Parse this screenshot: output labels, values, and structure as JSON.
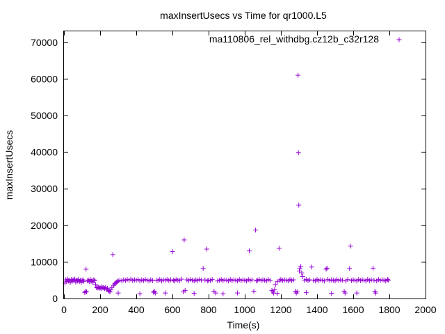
{
  "chart_data": {
    "type": "scatter",
    "title": "maxInsertUsecs vs Time for qr1000.L5",
    "xlabel": "Time(s)",
    "ylabel": "maxInsertUsecs",
    "xlim": [
      0,
      2000
    ],
    "ylim": [
      0,
      73000
    ],
    "x_ticks": [
      0,
      200,
      400,
      600,
      800,
      1000,
      1200,
      1400,
      1600,
      1800,
      2000
    ],
    "y_ticks": [
      0,
      10000,
      20000,
      30000,
      40000,
      50000,
      60000,
      70000
    ],
    "grid": false,
    "legend_position": "top-right",
    "marker": "+",
    "series": [
      {
        "name": "ma110806_rel_withdbg.cz12b_c32r128",
        "color": "#9400d3",
        "points": [
          [
            5,
            4200
          ],
          [
            10,
            5100
          ],
          [
            15,
            4600
          ],
          [
            20,
            5300
          ],
          [
            25,
            4800
          ],
          [
            30,
            5000
          ],
          [
            35,
            4400
          ],
          [
            40,
            5200
          ],
          [
            45,
            4700
          ],
          [
            50,
            5100
          ],
          [
            55,
            4900
          ],
          [
            60,
            5300
          ],
          [
            65,
            4500
          ],
          [
            70,
            5000
          ],
          [
            75,
            4800
          ],
          [
            80,
            5200
          ],
          [
            85,
            4600
          ],
          [
            90,
            5000
          ],
          [
            95,
            4400
          ],
          [
            100,
            4900
          ],
          [
            105,
            5100
          ],
          [
            110,
            4700
          ],
          [
            115,
            1600
          ],
          [
            118,
            2000
          ],
          [
            122,
            8000
          ],
          [
            125,
            1800
          ],
          [
            130,
            4800
          ],
          [
            135,
            5000
          ],
          [
            140,
            4600
          ],
          [
            145,
            5200
          ],
          [
            150,
            4700
          ],
          [
            155,
            5000
          ],
          [
            160,
            4400
          ],
          [
            165,
            5100
          ],
          [
            170,
            4900
          ],
          [
            175,
            3800
          ],
          [
            180,
            3000
          ],
          [
            185,
            2900
          ],
          [
            190,
            3100
          ],
          [
            195,
            2800
          ],
          [
            200,
            3000
          ],
          [
            205,
            2700
          ],
          [
            210,
            3200
          ],
          [
            215,
            2900
          ],
          [
            220,
            3000
          ],
          [
            225,
            2700
          ],
          [
            230,
            3100
          ],
          [
            235,
            2500
          ],
          [
            240,
            2800
          ],
          [
            245,
            2200
          ],
          [
            250,
            2000
          ],
          [
            255,
            1800
          ],
          [
            260,
            2500
          ],
          [
            265,
            3000
          ],
          [
            270,
            12000
          ],
          [
            275,
            3600
          ],
          [
            280,
            4000
          ],
          [
            285,
            4200
          ],
          [
            290,
            4400
          ],
          [
            295,
            4600
          ],
          [
            300,
            4800
          ],
          [
            310,
            5000
          ],
          [
            320,
            4800
          ],
          [
            330,
            5100
          ],
          [
            340,
            4900
          ],
          [
            350,
            5200
          ],
          [
            360,
            5000
          ],
          [
            370,
            5300
          ],
          [
            380,
            4900
          ],
          [
            390,
            5100
          ],
          [
            400,
            5000
          ],
          [
            410,
            5200
          ],
          [
            420,
            4800
          ],
          [
            430,
            5100
          ],
          [
            440,
            4900
          ],
          [
            450,
            5200
          ],
          [
            460,
            5000
          ],
          [
            470,
            4800
          ],
          [
            480,
            5100
          ],
          [
            490,
            4900
          ],
          [
            495,
            1700
          ],
          [
            500,
            2000
          ],
          [
            505,
            1500
          ],
          [
            510,
            5000
          ],
          [
            520,
            4900
          ],
          [
            530,
            5200
          ],
          [
            540,
            4800
          ],
          [
            550,
            5100
          ],
          [
            560,
            5000
          ],
          [
            570,
            5200
          ],
          [
            580,
            4900
          ],
          [
            590,
            5100
          ],
          [
            600,
            12800
          ],
          [
            605,
            5000
          ],
          [
            610,
            4800
          ],
          [
            620,
            5200
          ],
          [
            630,
            5000
          ],
          [
            640,
            4900
          ],
          [
            650,
            5300
          ],
          [
            660,
            1800
          ],
          [
            665,
            16000
          ],
          [
            670,
            2200
          ],
          [
            680,
            5100
          ],
          [
            690,
            4900
          ],
          [
            700,
            5200
          ],
          [
            710,
            5000
          ],
          [
            720,
            4800
          ],
          [
            730,
            5100
          ],
          [
            740,
            4900
          ],
          [
            750,
            5200
          ],
          [
            760,
            5000
          ],
          [
            770,
            8200
          ],
          [
            780,
            5100
          ],
          [
            790,
            13500
          ],
          [
            795,
            4800
          ],
          [
            800,
            5000
          ],
          [
            810,
            4900
          ],
          [
            820,
            5200
          ],
          [
            830,
            2000
          ],
          [
            840,
            1500
          ],
          [
            850,
            4800
          ],
          [
            860,
            5000
          ],
          [
            870,
            5200
          ],
          [
            880,
            4900
          ],
          [
            890,
            5100
          ],
          [
            900,
            5000
          ],
          [
            910,
            4800
          ],
          [
            920,
            5200
          ],
          [
            930,
            4900
          ],
          [
            940,
            5100
          ],
          [
            950,
            5000
          ],
          [
            960,
            4800
          ],
          [
            970,
            5200
          ],
          [
            980,
            4900
          ],
          [
            990,
            5100
          ],
          [
            1000,
            5000
          ],
          [
            1010,
            4800
          ],
          [
            1020,
            5200
          ],
          [
            1025,
            13000
          ],
          [
            1030,
            4900
          ],
          [
            1040,
            5100
          ],
          [
            1050,
            2000
          ],
          [
            1060,
            18700
          ],
          [
            1065,
            4800
          ],
          [
            1070,
            5000
          ],
          [
            1080,
            5200
          ],
          [
            1090,
            4900
          ],
          [
            1100,
            5100
          ],
          [
            1110,
            5000
          ],
          [
            1120,
            4800
          ],
          [
            1130,
            5200
          ],
          [
            1140,
            4900
          ],
          [
            1150,
            2200
          ],
          [
            1155,
            1800
          ],
          [
            1160,
            1500
          ],
          [
            1165,
            2400
          ],
          [
            1170,
            3800
          ],
          [
            1180,
            4600
          ],
          [
            1190,
            13700
          ],
          [
            1195,
            5000
          ],
          [
            1200,
            5200
          ],
          [
            1210,
            4900
          ],
          [
            1220,
            5100
          ],
          [
            1230,
            5000
          ],
          [
            1240,
            4800
          ],
          [
            1250,
            5200
          ],
          [
            1260,
            4900
          ],
          [
            1270,
            5100
          ],
          [
            1280,
            2000
          ],
          [
            1285,
            1500
          ],
          [
            1290,
            1800
          ],
          [
            1295,
            61000
          ],
          [
            1297,
            39800
          ],
          [
            1299,
            25500
          ],
          [
            1302,
            7500
          ],
          [
            1305,
            8200
          ],
          [
            1310,
            8800
          ],
          [
            1315,
            7000
          ],
          [
            1320,
            6000
          ],
          [
            1330,
            5000
          ],
          [
            1340,
            5200
          ],
          [
            1350,
            4900
          ],
          [
            1360,
            5100
          ],
          [
            1370,
            8600
          ],
          [
            1380,
            5000
          ],
          [
            1390,
            4800
          ],
          [
            1400,
            5200
          ],
          [
            1410,
            4900
          ],
          [
            1420,
            5100
          ],
          [
            1430,
            5000
          ],
          [
            1440,
            4800
          ],
          [
            1450,
            8000
          ],
          [
            1455,
            8300
          ],
          [
            1460,
            5200
          ],
          [
            1470,
            4900
          ],
          [
            1480,
            5100
          ],
          [
            1490,
            5000
          ],
          [
            1500,
            4800
          ],
          [
            1510,
            5200
          ],
          [
            1520,
            4900
          ],
          [
            1530,
            5100
          ],
          [
            1540,
            5000
          ],
          [
            1550,
            2000
          ],
          [
            1555,
            1500
          ],
          [
            1560,
            4800
          ],
          [
            1570,
            5200
          ],
          [
            1580,
            8200
          ],
          [
            1585,
            14300
          ],
          [
            1590,
            4900
          ],
          [
            1600,
            5100
          ],
          [
            1610,
            5000
          ],
          [
            1620,
            4800
          ],
          [
            1630,
            5200
          ],
          [
            1640,
            4900
          ],
          [
            1650,
            5100
          ],
          [
            1660,
            5000
          ],
          [
            1670,
            4800
          ],
          [
            1680,
            5200
          ],
          [
            1690,
            4900
          ],
          [
            1700,
            5100
          ],
          [
            1710,
            8300
          ],
          [
            1715,
            5000
          ],
          [
            1720,
            2000
          ],
          [
            1725,
            1500
          ],
          [
            1730,
            4800
          ],
          [
            1740,
            5200
          ],
          [
            1750,
            4900
          ],
          [
            1760,
            5100
          ],
          [
            1770,
            5000
          ],
          [
            1780,
            4800
          ],
          [
            1790,
            5200
          ],
          [
            1795,
            5000
          ],
          [
            300,
            1500
          ],
          [
            420,
            1300
          ],
          [
            560,
            1500
          ],
          [
            720,
            1400
          ],
          [
            880,
            1300
          ],
          [
            960,
            1500
          ],
          [
            1180,
            1400
          ],
          [
            1340,
            1600
          ],
          [
            1480,
            1400
          ],
          [
            1620,
            1500
          ]
        ]
      }
    ]
  }
}
